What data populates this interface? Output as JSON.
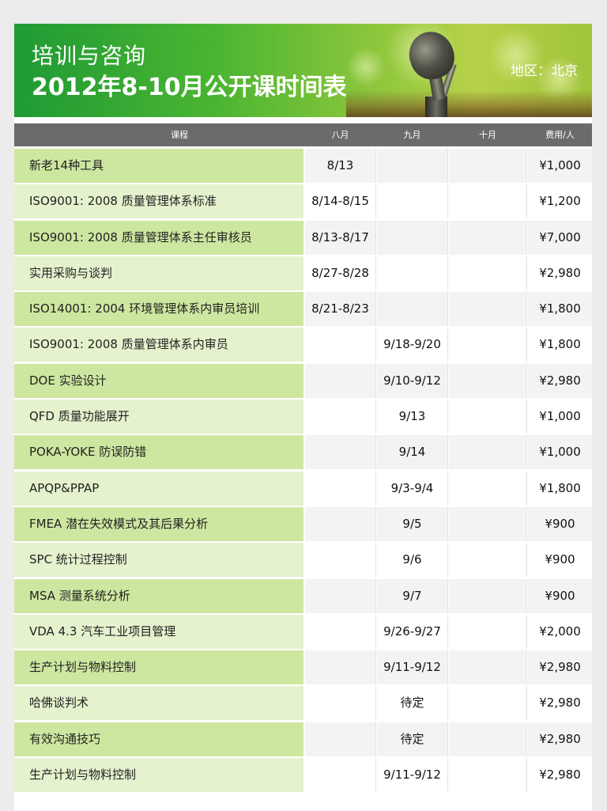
{
  "banner": {
    "title_line1": "培训与咨询",
    "title_line2": "2012年8-10月公开课时间表",
    "region": "地区：北京"
  },
  "columns": [
    "课程",
    "八月",
    "九月",
    "十月",
    "费用/人"
  ],
  "courses": [
    {
      "name": "新老14种工具",
      "aug": "8/13",
      "sep": "",
      "oct": "",
      "fee": "¥1,000"
    },
    {
      "name": "ISO9001: 2008 质量管理体系标准",
      "aug": "8/14-8/15",
      "sep": "",
      "oct": "",
      "fee": "¥1,200"
    },
    {
      "name": "ISO9001: 2008 质量管理体系主任审核员",
      "aug": "8/13-8/17",
      "sep": "",
      "oct": "",
      "fee": "¥7,000"
    },
    {
      "name": "实用采购与谈判",
      "aug": "8/27-8/28",
      "sep": "",
      "oct": "",
      "fee": "¥2,980"
    },
    {
      "name": "ISO14001: 2004 环境管理体系内审员培训",
      "aug": "8/21-8/23",
      "sep": "",
      "oct": "",
      "fee": "¥1,800"
    },
    {
      "name": "ISO9001: 2008 质量管理体系内审员",
      "aug": "",
      "sep": "9/18-9/20",
      "oct": "",
      "fee": "¥1,800"
    },
    {
      "name": "DOE 实验设计",
      "aug": "",
      "sep": "9/10-9/12",
      "oct": "",
      "fee": "¥2,980"
    },
    {
      "name": "QFD 质量功能展开",
      "aug": "",
      "sep": "9/13",
      "oct": "",
      "fee": "¥1,000"
    },
    {
      "name": "POKA-YOKE 防误防错",
      "aug": "",
      "sep": "9/14",
      "oct": "",
      "fee": "¥1,000"
    },
    {
      "name": "APQP&PPAP",
      "aug": "",
      "sep": "9/3-9/4",
      "oct": "",
      "fee": "¥1,800"
    },
    {
      "name": "FMEA 潜在失效模式及其后果分析",
      "aug": "",
      "sep": "9/5",
      "oct": "",
      "fee": "¥900"
    },
    {
      "name": "SPC 统计过程控制",
      "aug": "",
      "sep": "9/6",
      "oct": "",
      "fee": "¥900"
    },
    {
      "name": "MSA 测量系统分析",
      "aug": "",
      "sep": "9/7",
      "oct": "",
      "fee": "¥900"
    },
    {
      "name": "VDA 4.3 汽车工业项目管理",
      "aug": "",
      "sep": "9/26-9/27",
      "oct": "",
      "fee": "¥2,000"
    },
    {
      "name": "生产计划与物料控制",
      "aug": "",
      "sep": "9/11-9/12",
      "oct": "",
      "fee": "¥2,980"
    },
    {
      "name": "哈佛谈判术",
      "aug": "",
      "sep": "待定",
      "oct": "",
      "fee": "¥2,980"
    },
    {
      "name": "有效沟通技巧",
      "aug": "",
      "sep": "待定",
      "oct": "",
      "fee": "¥2,980"
    },
    {
      "name": "生产计划与物料控制",
      "aug": "",
      "sep": "9/11-9/12",
      "oct": "",
      "fee": "¥2,980"
    }
  ]
}
